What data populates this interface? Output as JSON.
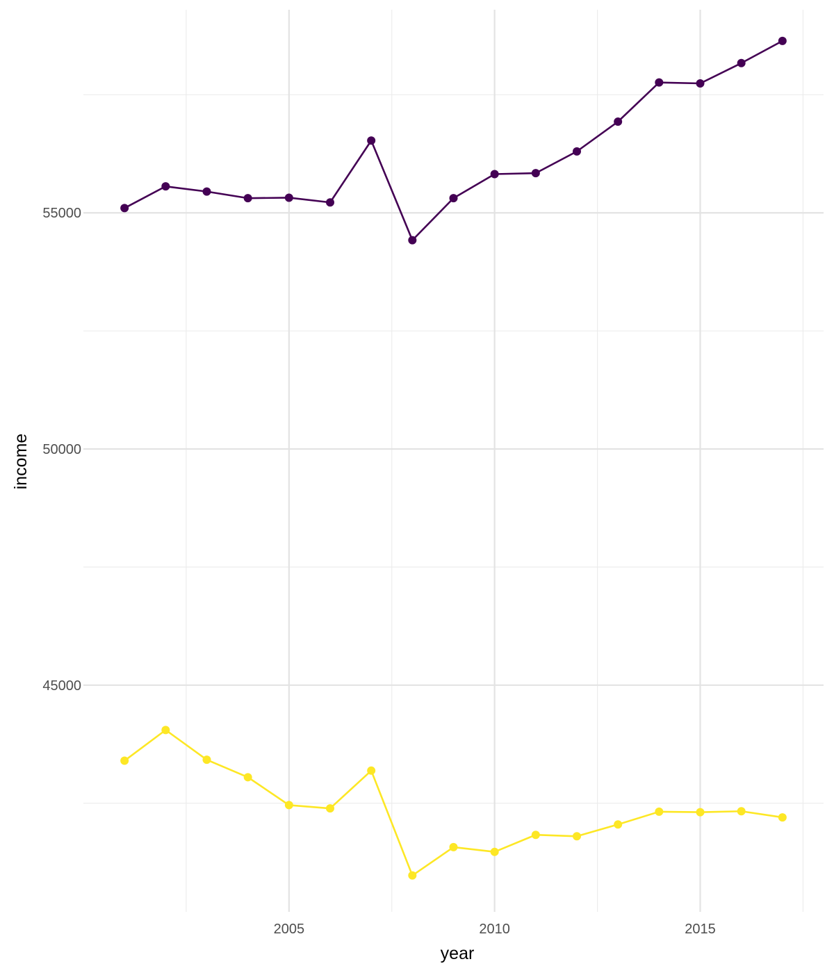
{
  "chart_data": {
    "type": "line",
    "xlabel": "year",
    "ylabel": "income",
    "x": [
      2001,
      2002,
      2003,
      2004,
      2005,
      2006,
      2007,
      2008,
      2009,
      2010,
      2011,
      2012,
      2013,
      2014,
      2015,
      2016,
      2017
    ],
    "series": [
      {
        "color": "#440154",
        "values": [
          55100,
          55560,
          55450,
          55310,
          55320,
          55220,
          56530,
          54420,
          55310,
          55820,
          55840,
          56300,
          56930,
          57760,
          57740,
          58170,
          58640
        ]
      },
      {
        "color": "#FDE725",
        "values": [
          43400,
          44050,
          43420,
          43050,
          42460,
          42390,
          43190,
          40970,
          41570,
          41470,
          41830,
          41800,
          42050,
          42320,
          42310,
          42330,
          42200
        ]
      }
    ],
    "xlim": [
      2000,
      2018
    ],
    "ylim": [
      40200,
      59300
    ],
    "x_ticks": [
      {
        "value": 2005,
        "label": "2005"
      },
      {
        "value": 2010,
        "label": "2010"
      },
      {
        "value": 2015,
        "label": "2015"
      }
    ],
    "y_ticks": [
      {
        "value": 45000,
        "label": "45000"
      },
      {
        "value": 50000,
        "label": "50000"
      },
      {
        "value": 55000,
        "label": "55000"
      }
    ],
    "grid": true,
    "legend": "none"
  }
}
